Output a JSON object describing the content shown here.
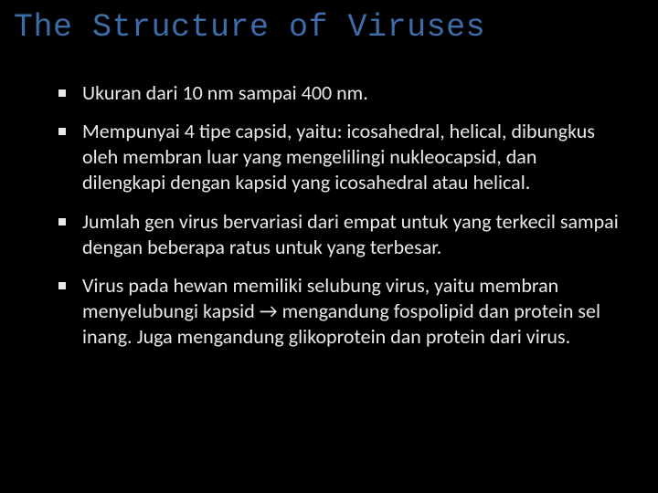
{
  "slide": {
    "title": "The Structure of Viruses",
    "title_color": "#3e6ca8",
    "title_font": "Courier New, monospace",
    "title_fontsize": 35,
    "background_color": "#000000",
    "text_color": "#e8e8e8",
    "bullet_marker": "square",
    "bullet_color": "#e8e8e8",
    "body_fontsize": 22,
    "bullets": [
      "Ukuran dari 10 nm sampai 400 nm.",
      "Mempunyai 4 tipe capsid, yaitu: icosahedral, helical, dibungkus oleh membran luar yang mengelilingi nukleocapsid, dan dilengkapi dengan kapsid yang icosahedral atau helical.",
      "Jumlah gen virus bervariasi dari empat untuk yang terkecil sampai dengan beberapa ratus untuk yang terbesar.",
      "Virus pada hewan memiliki selubung virus, yaitu membran menyelubungi kapsid → mengandung fospolipid dan protein sel inang. Juga mengandung glikoprotein dan protein dari virus."
    ]
  }
}
